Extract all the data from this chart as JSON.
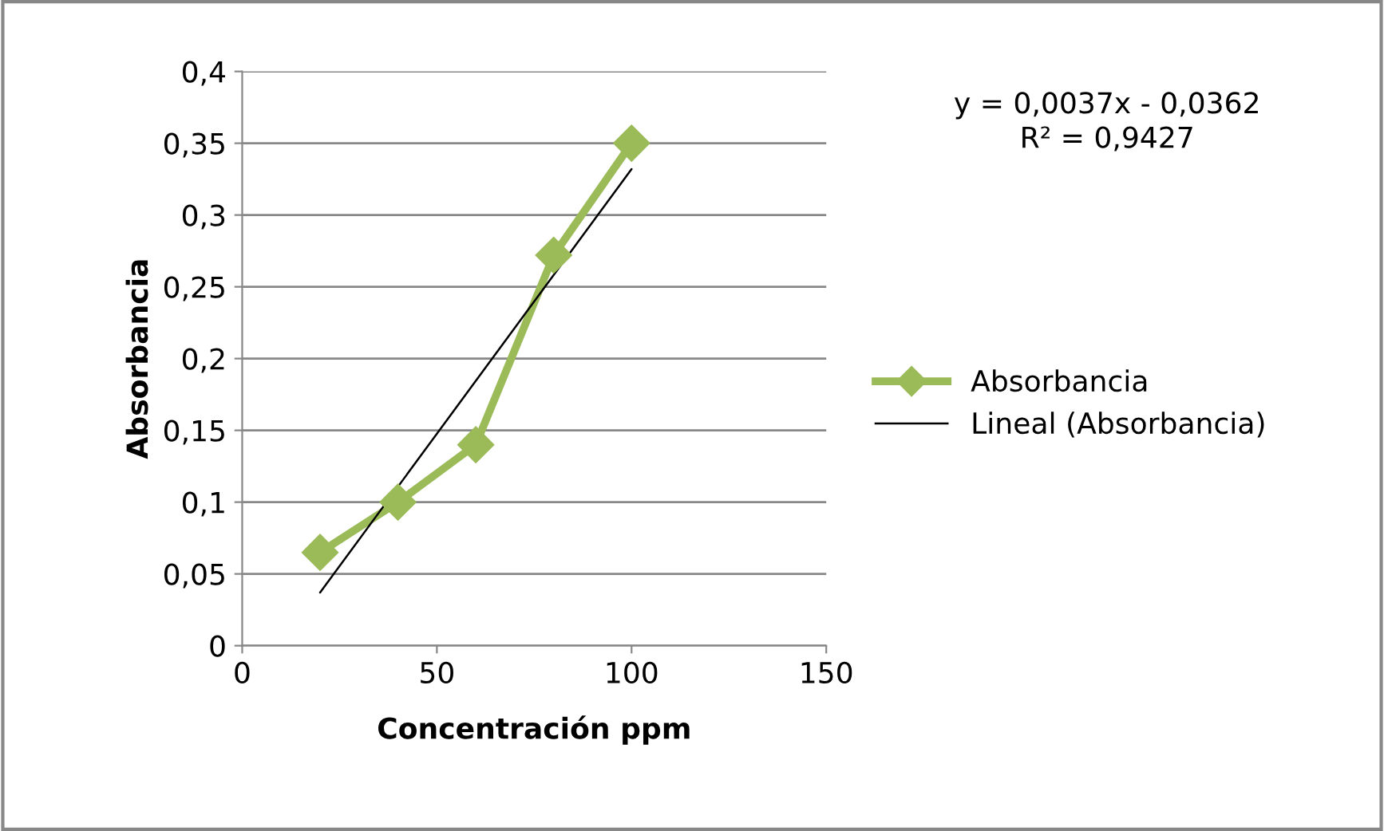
{
  "chart_data": {
    "type": "line",
    "xlabel": "Concentración ppm",
    "ylabel": "Absorbancia",
    "x": [
      20,
      40,
      60,
      80,
      100
    ],
    "series": [
      {
        "name": "Absorbancia",
        "color": "#9bbb59",
        "values": [
          0.065,
          0.1,
          0.14,
          0.272,
          0.35
        ],
        "marker": "diamond"
      },
      {
        "name": "Lineal (Absorbancia)",
        "color": "#000000",
        "type": "line",
        "x": [
          20,
          100
        ],
        "values": [
          0.037,
          0.332
        ],
        "marker": "none"
      }
    ],
    "annotations": [
      "y = 0,0037x - 0,0362\nR² = 0,9427"
    ],
    "xlim": [
      0,
      150
    ],
    "xticks": [
      0,
      50,
      100,
      150
    ],
    "ylim": [
      0,
      0.4
    ],
    "yticks": [
      {
        "value": 0,
        "label": "0"
      },
      {
        "value": 0.05,
        "label": "0,05"
      },
      {
        "value": 0.1,
        "label": "0,1"
      },
      {
        "value": 0.15,
        "label": "0,15"
      },
      {
        "value": 0.2,
        "label": "0,2"
      },
      {
        "value": 0.25,
        "label": "0,25"
      },
      {
        "value": 0.3,
        "label": "0,3"
      },
      {
        "value": 0.35,
        "label": "0,35"
      },
      {
        "value": 0.4,
        "label": "0,4"
      }
    ],
    "grid": "y",
    "legend": "right"
  }
}
